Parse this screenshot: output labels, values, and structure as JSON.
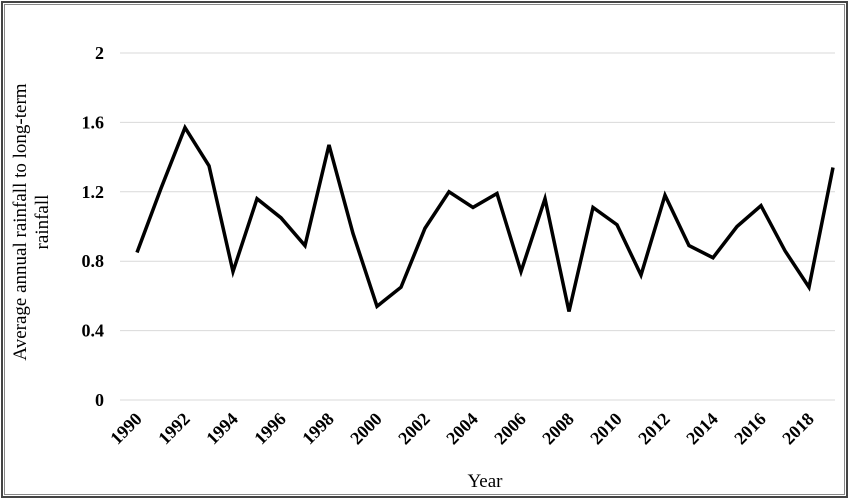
{
  "chart_data": {
    "type": "line",
    "x_label": "Year",
    "y_label": "Average annual rainfall to long-term rainfall",
    "x": [
      1990,
      1991,
      1992,
      1993,
      1994,
      1995,
      1996,
      1997,
      1998,
      1999,
      2000,
      2001,
      2002,
      2003,
      2004,
      2005,
      2006,
      2007,
      2008,
      2009,
      2010,
      2011,
      2012,
      2013,
      2014,
      2015,
      2016,
      2017,
      2018,
      2019
    ],
    "series": [
      {
        "color": "#000000",
        "values": [
          0.85,
          1.22,
          1.57,
          1.35,
          0.74,
          1.16,
          1.05,
          0.89,
          1.47,
          0.96,
          0.54,
          0.65,
          0.99,
          1.2,
          1.11,
          1.19,
          0.74,
          1.16,
          0.51,
          1.11,
          1.01,
          0.72,
          1.18,
          0.89,
          0.82,
          1.0,
          1.12,
          0.86,
          0.65,
          1.34
        ]
      }
    ],
    "xlim": [
      1990,
      2019
    ],
    "xticks": [
      1990,
      1992,
      1994,
      1996,
      1998,
      2000,
      2002,
      2004,
      2006,
      2008,
      2010,
      2012,
      2014,
      2016,
      2018
    ],
    "ylim": [
      0,
      2
    ],
    "yticks": [
      0,
      0.4,
      0.8,
      1.2,
      1.6,
      2
    ],
    "grid": true
  }
}
